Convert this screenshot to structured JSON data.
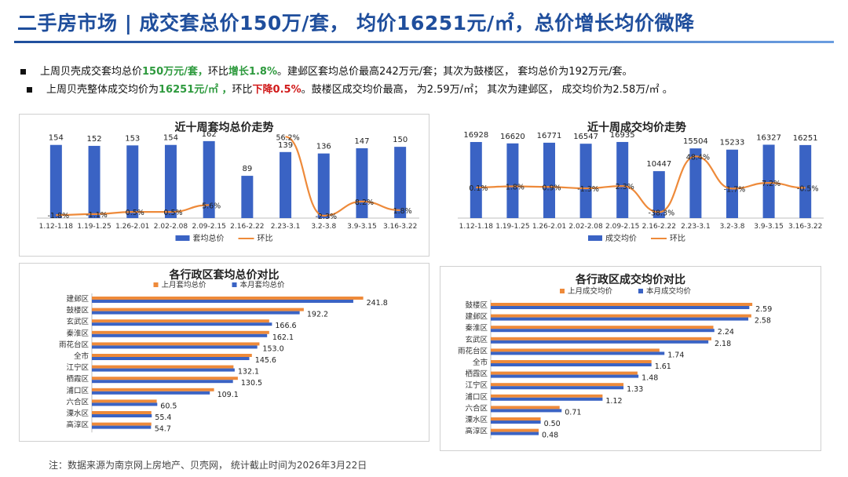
{
  "header": {
    "title": "二手房市场 | 成交套总价150万/套， 均价16251元/㎡，总价增长均价微降"
  },
  "bullets": [
    {
      "parts": [
        {
          "text": "上周贝壳成交套均总价",
          "style": ""
        },
        {
          "text": "150万元/套，",
          "style": "g"
        },
        {
          "text": "环比",
          "style": ""
        },
        {
          "text": "增长1.8%",
          "style": "g"
        },
        {
          "text": "。建邺区套均总价最高242万元/套；其次为鼓楼区， 套均总价为192万元/套。",
          "style": ""
        }
      ]
    },
    {
      "parts": [
        {
          "text": "上周贝壳整体成交均价为",
          "style": ""
        },
        {
          "text": "16251元/㎡ ，",
          "style": "g"
        },
        {
          "text": "环比",
          "style": ""
        },
        {
          "text": "下降0.5%",
          "style": "r"
        },
        {
          "text": "。鼓楼区成交均价最高， 为2.59万/㎡； 其次为建邺区， 成交均价为2.58万/㎡ 。",
          "style": ""
        }
      ]
    }
  ],
  "footer": {
    "note": "注：数据来源为南京网上房地产、贝壳网， 统计截止时间为2026年3月22日"
  },
  "colors": {
    "blue": "#3a63c4",
    "orange": "#ee8a3a",
    "title": "#1f4e9c"
  },
  "chart_data": [
    {
      "type": "bar+line",
      "title": "近十周套均总价走势",
      "categories": [
        "1.12-1.18",
        "1.19-1.25",
        "1.26-2.01",
        "2.02-2.08",
        "2.09-2.15",
        "2.16-2.22",
        "2.23-3.1",
        "3.2-3.8",
        "3.9-3.15",
        "3.16-3.22"
      ],
      "bars": {
        "name": "套均总价",
        "values": [
          154,
          152,
          153,
          154,
          162,
          89,
          139,
          136,
          147,
          150
        ]
      },
      "line": {
        "name": "环比",
        "values": [
          -1.8,
          -1.1,
          0.5,
          0.5,
          5.6,
          null,
          56.2,
          -2.3,
          8.2,
          1.8
        ],
        "labels": [
          "-1.8%",
          "-1.1%",
          "0.5%",
          "0.5%",
          "5.6%",
          "",
          "56.2%",
          "-2.3%",
          "8.2%",
          "1.8%"
        ]
      },
      "bar_labels": [
        "154",
        "152",
        "153",
        "154",
        "162",
        "89",
        "139",
        "136",
        "147",
        "150"
      ],
      "ylim": [
        0,
        175
      ]
    },
    {
      "type": "bar+line",
      "title": "近十周成交均价走势",
      "categories": [
        "1.12-1.18",
        "1.19-1.25",
        "1.26-2.01",
        "2.02-2.08",
        "2.09-2.15",
        "2.16-2.22",
        "2.23-3.1",
        "3.2-3.8",
        "3.9-3.15",
        "3.16-3.22"
      ],
      "bars": {
        "name": "成交均价",
        "values": [
          16928,
          16620,
          16771,
          16547,
          16935,
          10447,
          15504,
          15233,
          16327,
          16251
        ]
      },
      "line": {
        "name": "环比",
        "values": [
          0.1,
          1.8,
          0.9,
          -1.3,
          2.3,
          -38.3,
          48.4,
          -1.7,
          7.2,
          -0.5
        ],
        "labels": [
          "0.1%",
          "1.8%",
          "0.9%",
          "-1.3%",
          "2.3%",
          "-38.3%",
          "48.4%",
          "-1.7%",
          "7.2%",
          "-0.5%"
        ]
      },
      "bar_labels": [
        "16928",
        "16620",
        "16771",
        "16547",
        "16935",
        "10447",
        "15504",
        "15233",
        "16327",
        "16251"
      ],
      "ylim": [
        0,
        18500
      ]
    },
    {
      "type": "hbar",
      "title": "各行政区套均总价对比",
      "categories": [
        "建邺区",
        "鼓楼区",
        "玄武区",
        "秦淮区",
        "雨花台区",
        "全市",
        "江宁区",
        "栖霞区",
        "浦口区",
        "六合区",
        "溧水区",
        "高淳区"
      ],
      "series": [
        {
          "name": "上月套均总价",
          "values": [
            251,
            196,
            164,
            164,
            155,
            148,
            131,
            135,
            113,
            60,
            55,
            55
          ]
        },
        {
          "name": "本月套均总价",
          "values": [
            241.8,
            192.2,
            166.6,
            162.1,
            153.0,
            145.6,
            132.1,
            130.5,
            109.1,
            60.5,
            55.4,
            54.7
          ]
        }
      ],
      "value_labels": [
        "241.8",
        "192.2",
        "166.6",
        "162.1",
        "153.0",
        "145.6",
        "132.1",
        "130.5",
        "109.1",
        "60.5",
        "55.4",
        "54.7"
      ],
      "xlim": [
        0,
        260
      ]
    },
    {
      "type": "hbar",
      "title": "各行政区成交均价对比",
      "categories": [
        "鼓楼区",
        "建邺区",
        "秦淮区",
        "玄武区",
        "雨花台区",
        "全市",
        "栖霞区",
        "江宁区",
        "浦口区",
        "六合区",
        "溧水区",
        "高淳区"
      ],
      "series": [
        {
          "name": "上月成交均价",
          "values": [
            2.62,
            2.61,
            2.23,
            2.21,
            1.69,
            1.61,
            1.47,
            1.33,
            1.12,
            0.69,
            0.5,
            0.48
          ]
        },
        {
          "name": "本月成交均价",
          "values": [
            2.59,
            2.58,
            2.24,
            2.18,
            1.74,
            1.61,
            1.48,
            1.33,
            1.12,
            0.71,
            0.5,
            0.48
          ]
        }
      ],
      "value_labels": [
        "2.59",
        "2.58",
        "2.24",
        "2.18",
        "1.74",
        "1.61",
        "1.48",
        "1.33",
        "1.12",
        "0.71",
        "0.50",
        "0.48"
      ],
      "xlim": [
        0,
        2.8
      ]
    }
  ]
}
